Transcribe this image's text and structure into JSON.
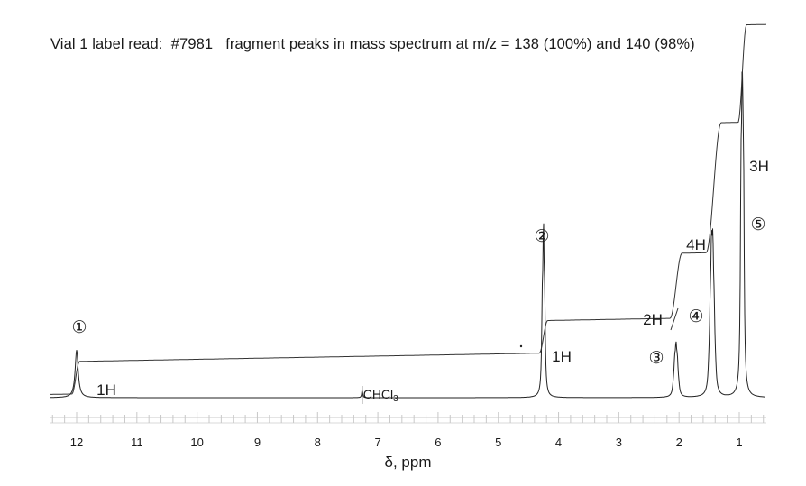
{
  "caption": "Vial 1 label read:  #7981   fragment peaks in mass spectrum at m/z = 138 (100%) and 140 (98%)",
  "chart_data": {
    "type": "line",
    "xlabel": "δ, ppm",
    "x_reversed": true,
    "xlim": [
      12.1,
      0.6
    ],
    "ticks": [
      12,
      11,
      10,
      9,
      8,
      7,
      6,
      5,
      4,
      3,
      2,
      1
    ],
    "integrals": [
      {
        "label": "1H",
        "shift": 12.0,
        "value": 1
      },
      {
        "label": "1H",
        "shift": 4.25,
        "value": 1
      },
      {
        "label": "2H",
        "shift": 2.05,
        "value": 2
      },
      {
        "label": "4H",
        "shift": 1.45,
        "value": 4
      },
      {
        "label": "3H",
        "shift": 0.95,
        "value": 3
      }
    ],
    "peak_markers": [
      {
        "label": "①",
        "shift": 12.0
      },
      {
        "label": "②",
        "shift": 4.25
      },
      {
        "label": "③",
        "shift": 2.05
      },
      {
        "label": "④",
        "shift": 1.45
      },
      {
        "label": "⑤",
        "shift": 0.95
      }
    ],
    "solvent": {
      "label": "CHCl",
      "subscript": "3",
      "shift": 7.26
    },
    "peaks": [
      {
        "shift": 12.0,
        "height": 0.32,
        "width": 0.03,
        "multiplicity": 1
      },
      {
        "shift": 4.25,
        "height": 0.95,
        "width": 0.012,
        "multiplicity": 3,
        "j": 0.02
      },
      {
        "shift": 2.05,
        "height": 0.26,
        "width": 0.015,
        "multiplicity": 5,
        "j": 0.022
      },
      {
        "shift": 1.45,
        "height": 0.73,
        "width": 0.015,
        "multiplicity": 6,
        "j": 0.022
      },
      {
        "shift": 0.95,
        "height": 2.2,
        "width": 0.012,
        "multiplicity": 3,
        "j": 0.022
      },
      {
        "shift": 7.26,
        "height": 0.05,
        "width": 0.01,
        "multiplicity": 1
      }
    ],
    "integral_curve": {
      "baseline_start": 0.0,
      "steps": [
        {
          "start": 12.08,
          "end": 11.95,
          "rise": 0.12
        },
        {
          "start": 4.32,
          "end": 4.18,
          "rise": 0.12
        },
        {
          "start": 2.15,
          "end": 1.95,
          "rise": 0.24
        },
        {
          "start": 1.55,
          "end": 1.3,
          "rise": 0.48
        },
        {
          "start": 1.02,
          "end": 0.88,
          "rise": 0.36
        }
      ],
      "drift_per_ppm": 0.004
    }
  }
}
